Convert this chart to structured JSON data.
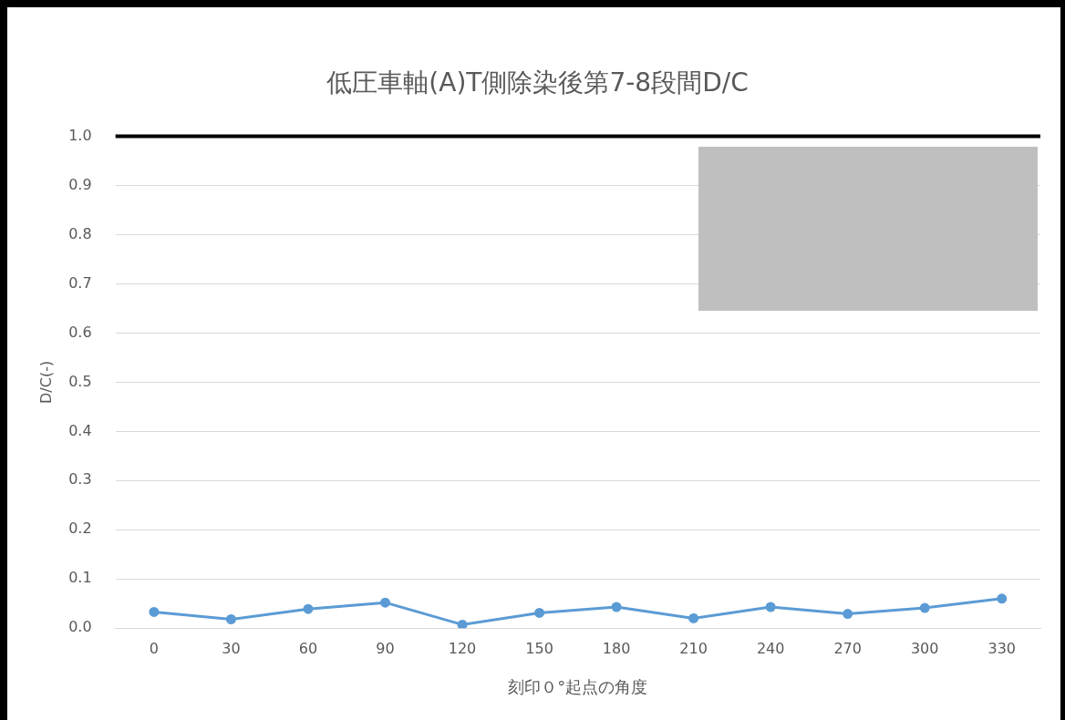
{
  "chart_data": {
    "type": "line",
    "title": "低圧車軸(A)T側除染後第7-8段間D/C",
    "xlabel": "刻印０°起点の角度",
    "ylabel": "D/C(-)",
    "categories": [
      "0",
      "30",
      "60",
      "90",
      "120",
      "150",
      "180",
      "210",
      "240",
      "270",
      "300",
      "330"
    ],
    "series": [
      {
        "color": "#5b9bd5",
        "values": [
          0.033,
          0.018,
          0.039,
          0.052,
          0.007,
          0.031,
          0.043,
          0.02,
          0.043,
          0.029,
          0.041,
          0.06
        ]
      }
    ],
    "ylim": [
      0,
      1
    ],
    "yticks": [
      {
        "value": 0,
        "label": "0.0"
      },
      {
        "value": 0.1,
        "label": "0.1"
      },
      {
        "value": 0.2,
        "label": "0.2"
      },
      {
        "value": 0.3,
        "label": "0.3"
      },
      {
        "value": 0.4,
        "label": "0.4"
      },
      {
        "value": 0.5,
        "label": "0.5"
      },
      {
        "value": 0.6,
        "label": "0.6"
      },
      {
        "value": 0.7,
        "label": "0.7"
      },
      {
        "value": 0.8,
        "label": "0.8"
      },
      {
        "value": 0.9,
        "label": "0.9"
      },
      {
        "value": 1,
        "label": "1.0"
      }
    ],
    "ref_lines": [
      {
        "axis": "y",
        "value": 1,
        "color": "#000000"
      }
    ],
    "grid": "y",
    "legend": false,
    "marker": "circle",
    "line_style": "solid"
  }
}
